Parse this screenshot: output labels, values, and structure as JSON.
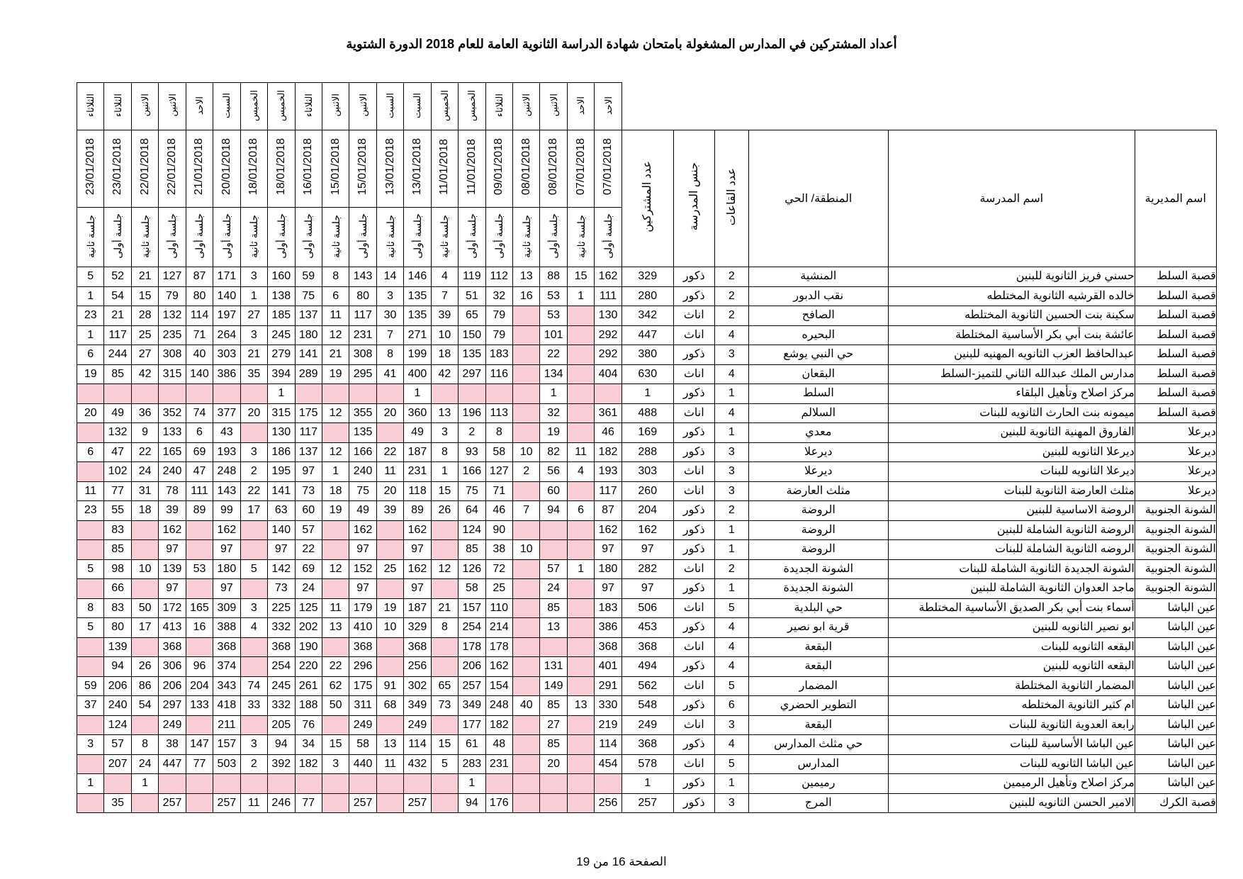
{
  "title": "أعداد المشتركين في المدارس المشغولة بامتحان شهادة الدراسة الثانوية العامة للعام 2018 الدورة الشتوية",
  "table": {
    "columns": [
      "اسم المديرية",
      "اسم المدرسة",
      "المنطقة/ الحي",
      "عدد القاعات",
      "جنس المدرسة",
      "عدد المشتركين"
    ],
    "date_columns": [
      {
        "day": "الاحد",
        "date": "07/01/2018",
        "session": "جلسة أولى"
      },
      {
        "day": "الاحد",
        "date": "07/01/2018",
        "session": "جلسة ثانية"
      },
      {
        "day": "الاثنين",
        "date": "08/01/2018",
        "session": "جلسة أولى"
      },
      {
        "day": "الاثنين",
        "date": "08/01/2018",
        "session": "جلسة ثانية"
      },
      {
        "day": "الثلاثاء",
        "date": "09/01/2018",
        "session": "جلسة أولى"
      },
      {
        "day": "الخميس",
        "date": "11/01/2018",
        "session": "جلسة أولى"
      },
      {
        "day": "الخميس",
        "date": "11/01/2018",
        "session": "جلسة ثانية"
      },
      {
        "day": "السبت",
        "date": "13/01/2018",
        "session": "جلسة أولى"
      },
      {
        "day": "السبت",
        "date": "13/01/2018",
        "session": "جلسة ثانية"
      },
      {
        "day": "الاثنين",
        "date": "15/01/2018",
        "session": "جلسة أولى"
      },
      {
        "day": "الاثنين",
        "date": "15/01/2018",
        "session": "جلسة ثانية"
      },
      {
        "day": "الثلاثاء",
        "date": "16/01/2018",
        "session": "جلسة أولى"
      },
      {
        "day": "الخميس",
        "date": "18/01/2018",
        "session": "جلسة أولى"
      },
      {
        "day": "الخميس",
        "date": "18/01/2018",
        "session": "جلسة ثانية"
      },
      {
        "day": "السبت",
        "date": "20/01/2018",
        "session": "جلسة أولى"
      },
      {
        "day": "الاحد",
        "date": "21/01/2018",
        "session": "جلسة أولى"
      },
      {
        "day": "الاثنين",
        "date": "22/01/2018",
        "session": "جلسة أولى"
      },
      {
        "day": "الاثنين",
        "date": "22/01/2018",
        "session": "جلسة ثانية"
      },
      {
        "day": "الثلاثاء",
        "date": "23/01/2018",
        "session": "جلسة أولى"
      },
      {
        "day": "الثلاثاء",
        "date": "23/01/2018",
        "session": "جلسة ثانية"
      }
    ],
    "rows": [
      {
        "directorate": "قصبة السلط",
        "school": "حسني فريز الثانوية للبنين",
        "area": "المنشية",
        "halls": 2,
        "gender": "ذكور",
        "participants": 329,
        "sessions": [
          162,
          15,
          88,
          13,
          112,
          119,
          4,
          146,
          14,
          143,
          8,
          59,
          160,
          3,
          171,
          87,
          127,
          21,
          52,
          5
        ]
      },
      {
        "directorate": "قصبة السلط",
        "school": "خالده القرشيه الثانوية المختلطه",
        "area": "نقب الدبور",
        "halls": 2,
        "gender": "ذكور",
        "participants": 280,
        "sessions": [
          111,
          1,
          53,
          16,
          32,
          51,
          7,
          135,
          3,
          80,
          6,
          75,
          138,
          1,
          140,
          80,
          79,
          15,
          54,
          1
        ]
      },
      {
        "directorate": "قصبة السلط",
        "school": "سكينة بنت الحسين الثانوية المختلطه",
        "area": "الصافح",
        "halls": 2,
        "gender": "اناث",
        "participants": 342,
        "sessions": [
          130,
          null,
          53,
          null,
          79,
          65,
          39,
          135,
          30,
          117,
          11,
          137,
          185,
          27,
          197,
          114,
          132,
          28,
          21,
          23
        ]
      },
      {
        "directorate": "قصبة السلط",
        "school": "عائشة بنت أبي بكر الأساسية المختلطة",
        "area": "البحيره",
        "halls": 4,
        "gender": "اناث",
        "participants": 447,
        "sessions": [
          292,
          null,
          101,
          null,
          79,
          150,
          10,
          271,
          7,
          231,
          12,
          180,
          245,
          3,
          264,
          71,
          235,
          25,
          117,
          1
        ]
      },
      {
        "directorate": "قصبة السلط",
        "school": "عبدالحافظ العزب الثانويه المهنيه للبنين",
        "area": "حي النبي يوشع",
        "halls": 3,
        "gender": "ذكور",
        "participants": 380,
        "sessions": [
          292,
          null,
          22,
          null,
          183,
          135,
          18,
          199,
          8,
          308,
          21,
          141,
          279,
          21,
          303,
          40,
          308,
          27,
          244,
          6
        ]
      },
      {
        "directorate": "قصبة السلط",
        "school": "مدارس الملك عبدالله الثاني للتميز-السلط",
        "area": "البقعان",
        "halls": 4,
        "gender": "اناث",
        "participants": 630,
        "sessions": [
          404,
          null,
          134,
          null,
          116,
          297,
          42,
          400,
          41,
          295,
          19,
          289,
          394,
          35,
          386,
          140,
          315,
          42,
          85,
          19
        ]
      },
      {
        "directorate": "قصبة السلط",
        "school": "مركز اصلاح وتأهيل البلقاء",
        "area": "السلط",
        "halls": 1,
        "gender": "ذكور",
        "participants": 1,
        "sessions": [
          null,
          null,
          1,
          null,
          null,
          null,
          null,
          1,
          null,
          null,
          null,
          null,
          1,
          null,
          null,
          null,
          null,
          null,
          null,
          null
        ]
      },
      {
        "directorate": "قصبة السلط",
        "school": "ميمونه بنت الحارث الثانويه للبنات",
        "area": "السلالم",
        "halls": 4,
        "gender": "اناث",
        "participants": 488,
        "sessions": [
          361,
          null,
          32,
          null,
          113,
          196,
          13,
          360,
          20,
          355,
          12,
          175,
          315,
          20,
          377,
          74,
          352,
          36,
          49,
          20
        ]
      },
      {
        "directorate": "ديرعلا",
        "school": "الفاروق المهنية الثانوية للبنين",
        "area": "معدي",
        "halls": 1,
        "gender": "ذكور",
        "participants": 169,
        "sessions": [
          46,
          null,
          19,
          null,
          8,
          2,
          3,
          49,
          null,
          135,
          null,
          117,
          130,
          null,
          43,
          6,
          133,
          9,
          132,
          null
        ]
      },
      {
        "directorate": "ديرعلا",
        "school": "ديرعلا الثانويه للبنين",
        "area": "ديرعلا",
        "halls": 3,
        "gender": "ذكور",
        "participants": 288,
        "sessions": [
          182,
          11,
          82,
          10,
          58,
          93,
          8,
          187,
          22,
          166,
          12,
          137,
          186,
          3,
          193,
          69,
          165,
          22,
          47,
          6
        ]
      },
      {
        "directorate": "ديرعلا",
        "school": "ديرعلا الثانويه للبنات",
        "area": "ديرعلا",
        "halls": 3,
        "gender": "اناث",
        "participants": 303,
        "sessions": [
          193,
          4,
          56,
          2,
          127,
          166,
          1,
          231,
          11,
          240,
          1,
          97,
          195,
          2,
          248,
          47,
          240,
          24,
          102,
          null
        ]
      },
      {
        "directorate": "ديرعلا",
        "school": "مثلث العارضة الثانوية للبنات",
        "area": "مثلث العارضة",
        "halls": 3,
        "gender": "اناث",
        "participants": 260,
        "sessions": [
          117,
          null,
          60,
          null,
          71,
          75,
          15,
          118,
          20,
          75,
          18,
          73,
          141,
          22,
          143,
          111,
          78,
          31,
          77,
          11
        ]
      },
      {
        "directorate": "الشونة الجنوبية",
        "school": "الروضة الاساسية للبنين",
        "area": "الروضة",
        "halls": 2,
        "gender": "ذكور",
        "participants": 204,
        "sessions": [
          87,
          6,
          94,
          7,
          46,
          64,
          26,
          89,
          39,
          49,
          19,
          60,
          63,
          17,
          99,
          89,
          39,
          18,
          55,
          23
        ]
      },
      {
        "directorate": "الشونة الجنوبية",
        "school": "الروضة الثانوية الشاملة للبنين",
        "area": "الروضة",
        "halls": 1,
        "gender": "ذكور",
        "participants": 162,
        "sessions": [
          162,
          null,
          null,
          null,
          90,
          124,
          null,
          162,
          null,
          162,
          null,
          57,
          140,
          null,
          162,
          null,
          162,
          null,
          83,
          null
        ]
      },
      {
        "directorate": "الشونة الجنوبية",
        "school": "الروضه الثانوية الشاملة للبنات",
        "area": "الروضة",
        "halls": 1,
        "gender": "ذكور",
        "participants": 97,
        "sessions": [
          97,
          null,
          null,
          10,
          38,
          85,
          null,
          97,
          null,
          97,
          null,
          22,
          97,
          null,
          97,
          null,
          97,
          null,
          85,
          null
        ]
      },
      {
        "directorate": "الشونة الجنوبية",
        "school": "الشونة الجديدة الثانوية الشاملة للبنات",
        "area": "الشونة الجديدة",
        "halls": 2,
        "gender": "اناث",
        "participants": 282,
        "sessions": [
          180,
          1,
          57,
          null,
          72,
          126,
          12,
          162,
          25,
          152,
          12,
          69,
          142,
          5,
          180,
          53,
          139,
          10,
          98,
          5
        ]
      },
      {
        "directorate": "الشونة الجنوبية",
        "school": "ماجد العدوان الثانوية الشاملة للبنين",
        "area": "الشونة الجديدة",
        "halls": 1,
        "gender": "ذكور",
        "participants": 97,
        "sessions": [
          97,
          null,
          24,
          null,
          25,
          58,
          null,
          97,
          null,
          97,
          null,
          24,
          73,
          null,
          97,
          null,
          97,
          null,
          66,
          null
        ]
      },
      {
        "directorate": "عين الباشا",
        "school": "أسماء بنت أبي بكر الصديق الأساسية المختلطة",
        "area": "حي البلدية",
        "halls": 5,
        "gender": "اناث",
        "participants": 506,
        "sessions": [
          183,
          null,
          85,
          null,
          110,
          157,
          21,
          187,
          19,
          179,
          11,
          125,
          225,
          3,
          309,
          165,
          172,
          50,
          83,
          8
        ]
      },
      {
        "directorate": "عين الباشا",
        "school": "ابو نصير الثانويه للبنين",
        "area": "قرية ابو نصير",
        "halls": 4,
        "gender": "ذكور",
        "participants": 453,
        "sessions": [
          386,
          null,
          13,
          null,
          214,
          254,
          8,
          329,
          10,
          410,
          13,
          202,
          332,
          4,
          388,
          16,
          413,
          17,
          80,
          5
        ]
      },
      {
        "directorate": "عين الباشا",
        "school": "البقعه الثانويه للبنات",
        "area": "البقعة",
        "halls": 4,
        "gender": "اناث",
        "participants": 368,
        "sessions": [
          368,
          null,
          null,
          null,
          178,
          178,
          null,
          368,
          null,
          368,
          null,
          190,
          368,
          null,
          368,
          null,
          368,
          null,
          139,
          null
        ]
      },
      {
        "directorate": "عين الباشا",
        "school": "البقعه الثانويه للبنين",
        "area": "البقعة",
        "halls": 4,
        "gender": "ذكور",
        "participants": 494,
        "sessions": [
          401,
          null,
          131,
          null,
          162,
          206,
          null,
          256,
          null,
          296,
          22,
          220,
          254,
          null,
          374,
          96,
          306,
          26,
          94,
          null
        ]
      },
      {
        "directorate": "عين الباشا",
        "school": "المضمار الثانوية المختلطة",
        "area": "المضمار",
        "halls": 5,
        "gender": "اناث",
        "participants": 562,
        "sessions": [
          291,
          null,
          149,
          null,
          154,
          257,
          65,
          302,
          91,
          175,
          62,
          261,
          245,
          74,
          343,
          204,
          206,
          86,
          206,
          59
        ]
      },
      {
        "directorate": "عين الباشا",
        "school": "ام كثير الثانوية المختلطه",
        "area": "التطوير الحضري",
        "halls": 6,
        "gender": "ذكور",
        "participants": 548,
        "sessions": [
          330,
          13,
          85,
          40,
          248,
          349,
          73,
          349,
          68,
          311,
          50,
          188,
          332,
          33,
          418,
          133,
          297,
          54,
          240,
          37
        ]
      },
      {
        "directorate": "عين الباشا",
        "school": "رابعة العدوية الثانوية للبنات",
        "area": "البقعة",
        "halls": 3,
        "gender": "اناث",
        "participants": 249,
        "sessions": [
          219,
          null,
          27,
          null,
          182,
          177,
          null,
          249,
          null,
          249,
          null,
          76,
          205,
          null,
          211,
          null,
          249,
          null,
          124,
          null
        ]
      },
      {
        "directorate": "عين الباشا",
        "school": "عين الباشا الأساسية للبنات",
        "area": "حي مثلث المدارس",
        "halls": 4,
        "gender": "ذكور",
        "participants": 368,
        "sessions": [
          114,
          null,
          85,
          null,
          48,
          61,
          15,
          114,
          13,
          58,
          15,
          34,
          94,
          3,
          157,
          147,
          38,
          8,
          57,
          3
        ]
      },
      {
        "directorate": "عين الباشا",
        "school": "عين الباشا الثانويه للبنات",
        "area": "المدارس",
        "halls": 5,
        "gender": "اناث",
        "participants": 578,
        "sessions": [
          454,
          null,
          20,
          null,
          231,
          283,
          5,
          432,
          11,
          440,
          3,
          182,
          392,
          2,
          503,
          77,
          447,
          24,
          207,
          null
        ]
      },
      {
        "directorate": "عين الباشا",
        "school": "مركز اصلاح وتأهيل الرميمين",
        "area": "رميمين",
        "halls": 1,
        "gender": "ذكور",
        "participants": 1,
        "sessions": [
          null,
          null,
          null,
          null,
          null,
          1,
          null,
          null,
          null,
          null,
          null,
          null,
          null,
          null,
          null,
          null,
          null,
          1,
          null,
          1
        ]
      },
      {
        "directorate": "قصبة الكرك",
        "school": "الامير الحسن الثانويه للبنين",
        "area": "المرج",
        "halls": 3,
        "gender": "ذكور",
        "participants": 257,
        "sessions": [
          256,
          null,
          null,
          null,
          176,
          94,
          null,
          257,
          null,
          257,
          null,
          77,
          246,
          11,
          257,
          null,
          257,
          null,
          35,
          null
        ]
      }
    ]
  },
  "footer": "الصفحة 16 من 19"
}
